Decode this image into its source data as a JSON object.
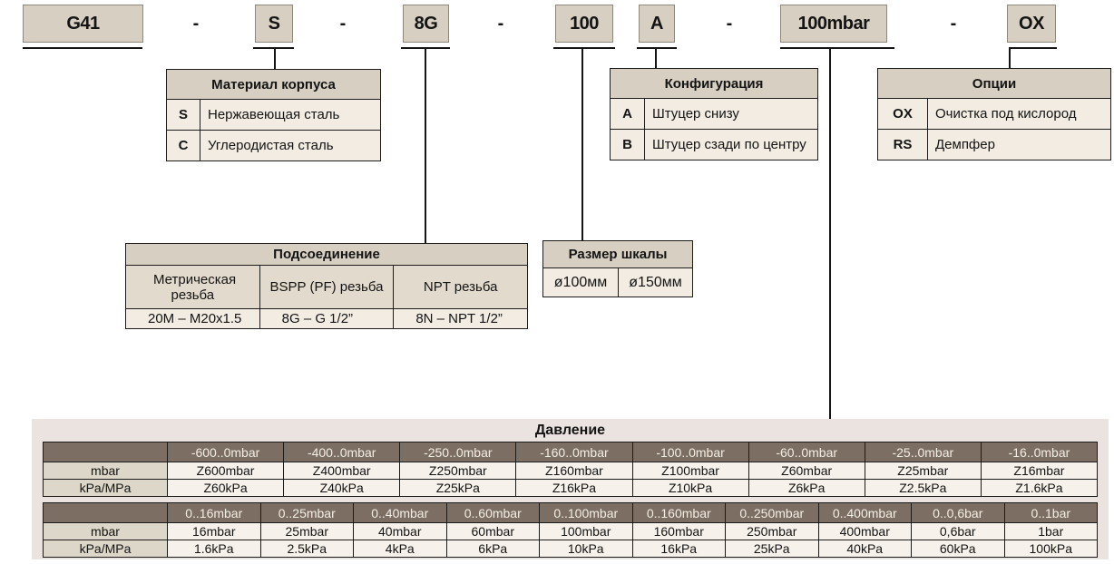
{
  "colors": {
    "box_fill": "#d6cfc2",
    "box_border": "#8e887b",
    "table_header_fill": "#d6cfc2",
    "table_body_fill": "#f2ece3",
    "pressure_panel_fill": "#ebe3df",
    "pressure_header_fill": "#7d6e63",
    "pressure_header_text": "#f3eee3",
    "pressure_label_fill": "#ddd7c9",
    "pressure_cell_fill": "#f6f1ea"
  },
  "code_row": {
    "separator": "-",
    "boxes": {
      "series": "G41",
      "material": "S",
      "connection": "8G",
      "size": "100",
      "configuration": "A",
      "range": "100mbar",
      "options": "OX"
    }
  },
  "material_table": {
    "title": "Материал корпуса",
    "rows": [
      [
        "S",
        "Нержавеющая сталь"
      ],
      [
        "C",
        "Углеродистая сталь"
      ]
    ]
  },
  "configuration_table": {
    "title": "Конфигурация",
    "rows": [
      [
        "A",
        "Штуцер снизу"
      ],
      [
        "B",
        "Штуцер сзади по центру"
      ]
    ]
  },
  "options_table": {
    "title": "Опции",
    "rows": [
      [
        "OX",
        "Очистка под кислород"
      ],
      [
        "RS",
        "Демпфер"
      ]
    ]
  },
  "connection_table": {
    "title": "Подсоединение",
    "columns": [
      "Метрическая резьба",
      "BSPP (PF) резьба",
      "NPT резьба"
    ],
    "values": [
      "20M – M20x1.5",
      "8G – G 1/2”",
      "8N – NPT 1/2”"
    ]
  },
  "scale_table": {
    "title": "Размер шкалы",
    "values": [
      "ø100мм",
      "ø150мм"
    ]
  },
  "pressure_table": {
    "title": "Давление",
    "row_labels": [
      "mbar",
      "kPa/MPa"
    ],
    "sections": [
      {
        "ranges": [
          "-600..0mbar",
          "-400..0mbar",
          "-250..0mbar",
          "-160..0mbar",
          "-100..0mbar",
          "-60..0mbar",
          "-25..0mbar",
          "-16..0mbar"
        ],
        "mbar": [
          "Z600mbar",
          "Z400mbar",
          "Z250mbar",
          "Z160mbar",
          "Z100mbar",
          "Z60mbar",
          "Z25mbar",
          "Z16mbar"
        ],
        "kpa_mpa": [
          "Z60kPa",
          "Z40kPa",
          "Z25kPa",
          "Z16kPa",
          "Z10kPa",
          "Z6kPa",
          "Z2.5kPa",
          "Z1.6kPa"
        ]
      },
      {
        "ranges": [
          "0..16mbar",
          "0..25mbar",
          "0..40mbar",
          "0..60mbar",
          "0..100mbar",
          "0..160mbar",
          "0..250mbar",
          "0..400mbar",
          "0..0,6bar",
          "0..1bar"
        ],
        "mbar": [
          "16mbar",
          "25mbar",
          "40mbar",
          "60mbar",
          "100mbar",
          "160mbar",
          "250mbar",
          "400mbar",
          "0,6bar",
          "1bar"
        ],
        "kpa_mpa": [
          "1.6kPa",
          "2.5kPa",
          "4kPa",
          "6kPa",
          "10kPa",
          "16kPa",
          "25kPa",
          "40kPa",
          "60kPa",
          "100kPa"
        ]
      }
    ]
  }
}
